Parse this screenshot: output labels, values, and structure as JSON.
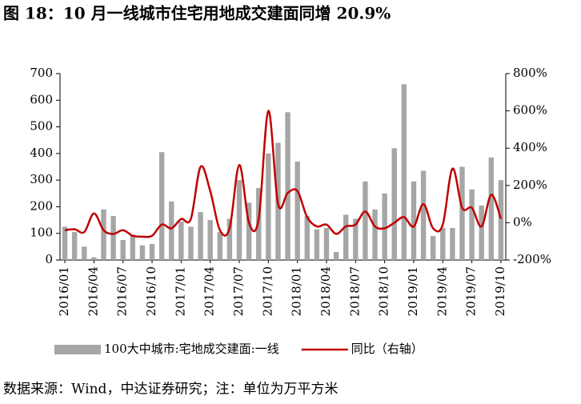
{
  "chart_data": {
    "type": "bar-line",
    "title": "图 18：10 月一线城市住宅用地成交建面同增 20.9%",
    "source": "数据来源：Wind，中达证券研究；注：单位为万平方米",
    "categories": [
      "2016/01",
      null,
      null,
      "2016/04",
      null,
      null,
      "2016/07",
      null,
      null,
      "2016/10",
      null,
      null,
      "2017/01",
      null,
      null,
      "2017/04",
      null,
      null,
      "2017/07",
      null,
      null,
      "2017/10",
      null,
      null,
      "2018/01",
      null,
      null,
      "2018/04",
      null,
      null,
      "2018/07",
      null,
      null,
      "2018/10",
      null,
      null,
      "2019/01",
      null,
      null,
      "2019/04",
      null,
      null,
      "2019/07",
      null,
      null,
      "2019/10"
    ],
    "series": [
      {
        "name": "100大中城市:宅地成交建面:一线",
        "color": "#a6a6a6",
        "type": "bar",
        "axis": "y",
        "values": [
          125,
          105,
          50,
          10,
          190,
          165,
          75,
          95,
          55,
          60,
          405,
          220,
          145,
          125,
          180,
          150,
          105,
          155,
          300,
          215,
          270,
          400,
          440,
          555,
          370,
          165,
          115,
          120,
          30,
          170,
          155,
          295,
          190,
          250,
          420,
          660,
          295,
          335,
          90,
          120,
          120,
          350,
          265,
          205,
          385,
          300
        ]
      },
      {
        "name": "同比（右轴）",
        "color": "#c00000",
        "type": "line",
        "axis": "y2",
        "values": [
          -40,
          -35,
          -50,
          50,
          -40,
          -60,
          -40,
          -70,
          -75,
          -70,
          -10,
          -30,
          20,
          20,
          300,
          170,
          -40,
          -30,
          310,
          0,
          20,
          600,
          100,
          160,
          170,
          30,
          -20,
          -10,
          -60,
          -20,
          -10,
          60,
          -20,
          -30,
          0,
          30,
          -20,
          100,
          -30,
          -10,
          290,
          80,
          80,
          -20,
          150,
          21
        ]
      }
    ],
    "ylim": [
      0,
      700
    ],
    "yticks": [
      0,
      100,
      200,
      300,
      400,
      500,
      600,
      700
    ],
    "y2lim": [
      -200,
      800
    ],
    "y2ticks": [
      {
        "value": -200,
        "label": "-200%"
      },
      {
        "value": 0,
        "label": "0%"
      },
      {
        "value": 200,
        "label": "200%"
      },
      {
        "value": 400,
        "label": "400%"
      },
      {
        "value": 600,
        "label": "600%"
      },
      {
        "value": 800,
        "label": "800%"
      }
    ],
    "legend": "bottom"
  }
}
